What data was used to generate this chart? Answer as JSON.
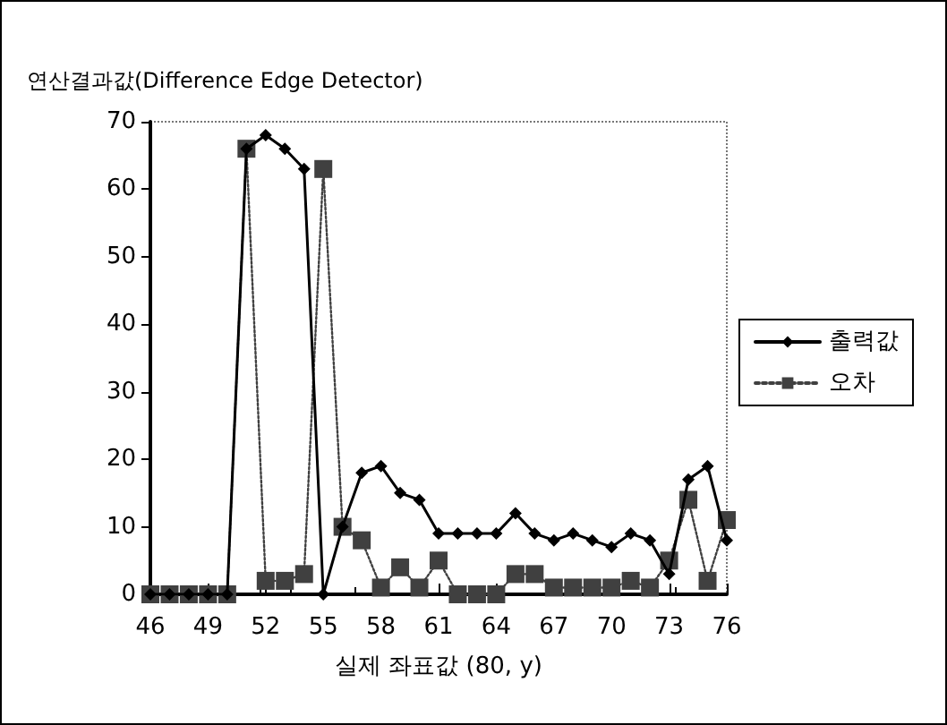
{
  "chart_data": {
    "type": "line",
    "ylabel": "연산결과값(Difference Edge Detector)",
    "xlabel": "실제 좌표값 (80, y)",
    "x": [
      46,
      47,
      48,
      49,
      50,
      51,
      52,
      53,
      54,
      55,
      56,
      57,
      58,
      59,
      60,
      61,
      62,
      63,
      64,
      65,
      66,
      67,
      68,
      69,
      70,
      71,
      72,
      73,
      74,
      75,
      76
    ],
    "series": [
      {
        "name": "출력값",
        "color": "#000000",
        "marker": "diamond",
        "line_style": "solid",
        "values": [
          0,
          0,
          0,
          0,
          0,
          66,
          68,
          66,
          63,
          0,
          10,
          18,
          19,
          15,
          14,
          9,
          9,
          9,
          9,
          12,
          9,
          8,
          9,
          8,
          7,
          9,
          8,
          3,
          17,
          19,
          8
        ]
      },
      {
        "name": "오차",
        "color": "#404040",
        "marker": "square",
        "line_style": "dotted",
        "values": [
          0,
          0,
          0,
          0,
          0,
          66,
          2,
          2,
          3,
          63,
          10,
          8,
          1,
          4,
          1,
          5,
          0,
          0,
          0,
          3,
          3,
          1,
          1,
          1,
          1,
          2,
          1,
          5,
          14,
          2,
          11
        ]
      }
    ],
    "xlim": [
      46,
      76
    ],
    "xticks": [
      46,
      49,
      52,
      55,
      58,
      61,
      64,
      67,
      70,
      73,
      76
    ],
    "ylim": [
      0,
      70
    ],
    "yticks": [
      0,
      10,
      20,
      30,
      40,
      50,
      60,
      70
    ],
    "grid": false,
    "legend": "right"
  }
}
